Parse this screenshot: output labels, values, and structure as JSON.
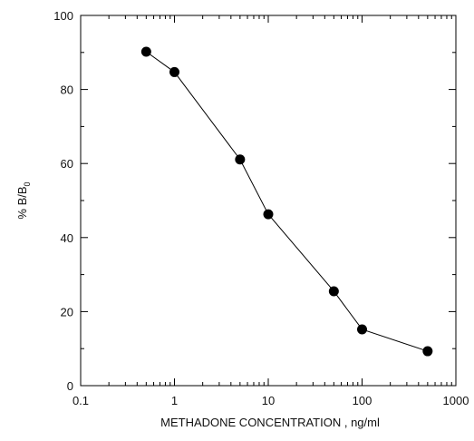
{
  "chart_data": {
    "type": "line",
    "title": "",
    "xlabel": "METHADONE CONCENTRATION , ng/ml",
    "ylabel": {
      "prefix": "% B/B",
      "subscript": "0"
    },
    "xscale": "log",
    "xlim": [
      0.1,
      1000
    ],
    "ylim": [
      0,
      100
    ],
    "x_ticks": [
      0.1,
      1,
      10,
      100,
      1000
    ],
    "x_tick_labels": [
      "0.1",
      "1",
      "10",
      "100",
      "1000"
    ],
    "y_ticks": [
      0,
      20,
      40,
      60,
      80,
      100
    ],
    "y_tick_labels": [
      "0",
      "20",
      "40",
      "60",
      "80",
      "100"
    ],
    "grid": false,
    "legend": "none",
    "marker": "filled-circle",
    "series": [
      {
        "x": [
          0.5,
          1,
          5,
          10,
          50,
          100,
          500
        ],
        "y": [
          90.2,
          84.7,
          61.1,
          46.3,
          25.5,
          15.2,
          9.3
        ],
        "color": "#000000"
      }
    ]
  }
}
